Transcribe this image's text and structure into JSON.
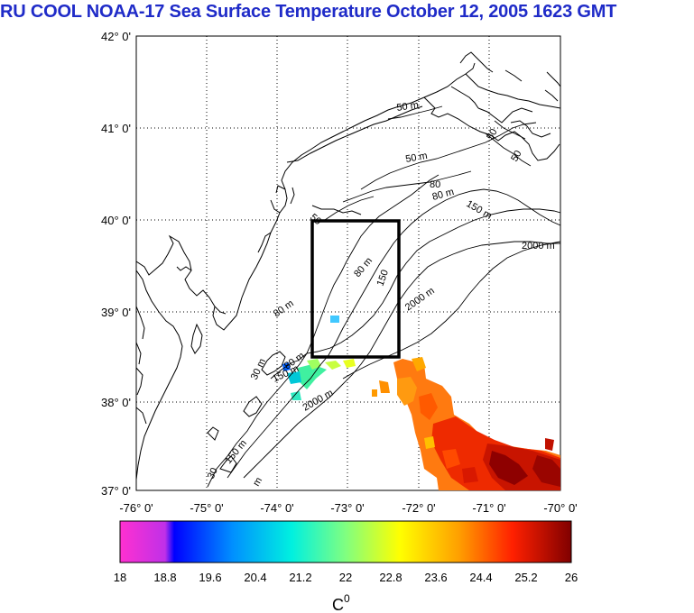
{
  "title": "RU COOL  NOAA-17 Sea Surface Temperature October 12, 2005 1623 GMT",
  "map": {
    "lat_labels": [
      "42° 0'",
      "41° 0'",
      "40° 0'",
      "39° 0'",
      "38° 0'",
      "37° 0'"
    ],
    "lon_labels": [
      "-76° 0'",
      "-75° 0'",
      "-74° 0'",
      "-73° 0'",
      "-72° 0'",
      "-71° 0'",
      "-70° 0'"
    ],
    "lat_range": [
      37,
      42
    ],
    "lon_range": [
      -76,
      -70
    ],
    "contours": [
      {
        "id": "c50a",
        "label": "50 m"
      },
      {
        "id": "c50b",
        "label": "50 m"
      },
      {
        "id": "c50c",
        "label": "50"
      },
      {
        "id": "c50d",
        "label": "50"
      },
      {
        "id": "c50e",
        "label": "50"
      },
      {
        "id": "c80a",
        "label": "80"
      },
      {
        "id": "c80b",
        "label": "80 m"
      },
      {
        "id": "c80c",
        "label": "80 m"
      },
      {
        "id": "c80d",
        "label": "80 m"
      },
      {
        "id": "c150a",
        "label": "150 m"
      },
      {
        "id": "c150b",
        "label": "150"
      },
      {
        "id": "c150c",
        "label": "150 m"
      },
      {
        "id": "c150d",
        "label": "150 m"
      },
      {
        "id": "c2000a",
        "label": "2000 m"
      },
      {
        "id": "c2000b",
        "label": "2000 m"
      },
      {
        "id": "c2000c",
        "label": "2000 m"
      },
      {
        "id": "c30a",
        "label": "30 m"
      },
      {
        "id": "c30b",
        "label": "30"
      },
      {
        "id": "cm",
        "label": "m"
      }
    ],
    "study_box": {
      "lon_min": -73.4,
      "lon_max": -72.2,
      "lat_min": 38.5,
      "lat_max": 40.0
    }
  },
  "colorbar": {
    "tick_labels": [
      "18",
      "18.8",
      "19.6",
      "20.4",
      "21.2",
      "22",
      "22.8",
      "23.6",
      "24.4",
      "25.2",
      "26"
    ],
    "unit": "C",
    "unit_sup": "0",
    "min": 18,
    "max": 26
  }
}
